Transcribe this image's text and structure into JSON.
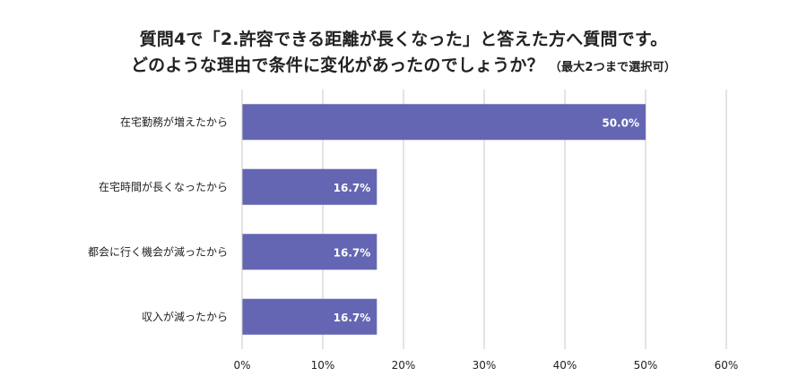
{
  "chart_data": {
    "type": "bar",
    "orientation": "horizontal",
    "title_line1": "質問4で「2.許容できる距離が長くなった」と答えた方へ質問です。",
    "title_line2": "どのような理由で条件に変化があったのでしょうか？",
    "title_note": "（最大2つまで選択可）",
    "categories": [
      "在宅勤務が増えたから",
      "在宅時間が長くなったから",
      "都会に行く機会が減ったから",
      "収入が減ったから"
    ],
    "values": [
      50.0,
      16.7,
      16.7,
      16.7
    ],
    "data_labels": [
      "50.0%",
      "16.7%",
      "16.7%",
      "16.7%"
    ],
    "xlim": [
      0,
      60
    ],
    "xticks": [
      0,
      10,
      20,
      30,
      40,
      50,
      60
    ],
    "xtick_labels": [
      "0%",
      "10%",
      "20%",
      "30%",
      "40%",
      "50%",
      "60%"
    ],
    "xlabel": "",
    "ylabel": "",
    "grid": true,
    "bar_color": "#6466b3",
    "grid_color": "#c8c8c8"
  }
}
